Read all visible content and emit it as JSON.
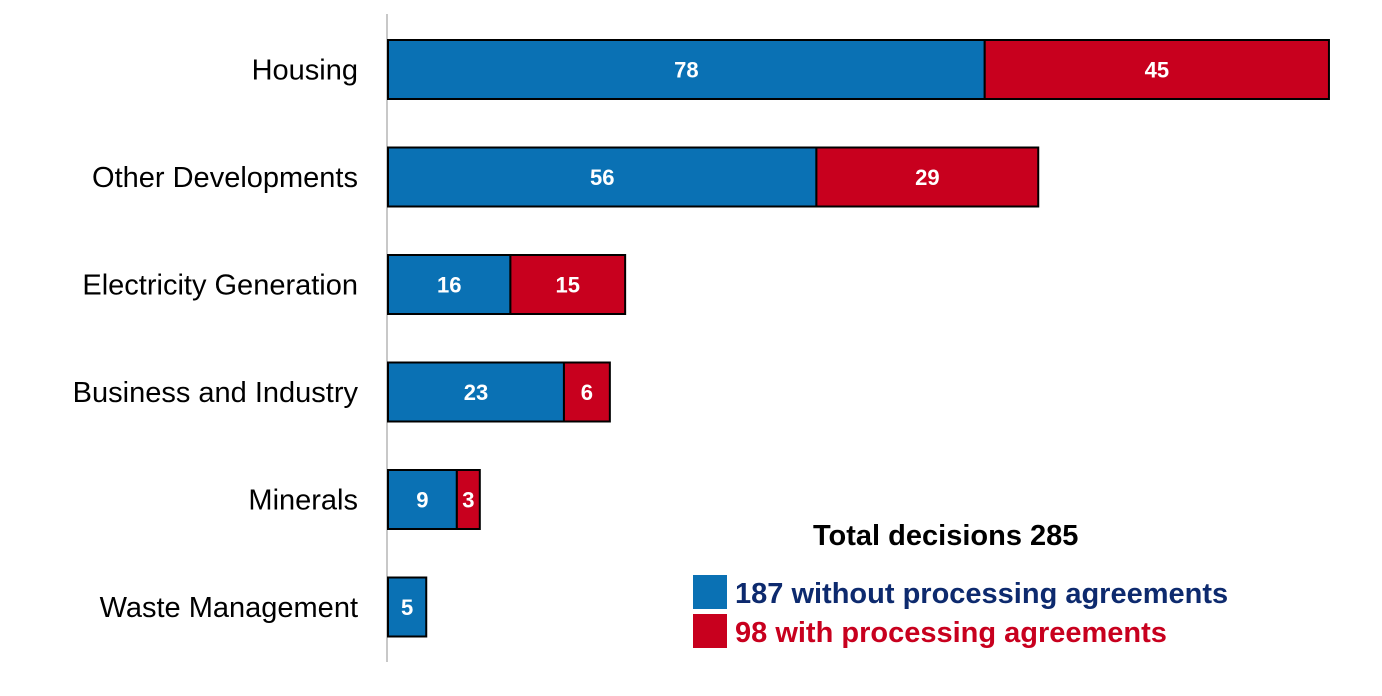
{
  "chart_data": {
    "type": "bar",
    "orientation": "horizontal",
    "stacked": true,
    "categories": [
      "Housing",
      "Other Developments",
      "Electricity Generation",
      "Business and Industry",
      "Minerals",
      "Waste Management"
    ],
    "series": [
      {
        "name": "187 without processing agreements",
        "color": "#0a71b4",
        "values": [
          78,
          56,
          16,
          23,
          9,
          5
        ]
      },
      {
        "name": "98 with processing agreements",
        "color": "#c8001e",
        "values": [
          45,
          29,
          15,
          6,
          3,
          0
        ]
      }
    ],
    "xlim": [
      0,
      124
    ],
    "grid": false,
    "legend_position": "bottom-right"
  },
  "legend": {
    "title": "Total decisions 285",
    "items": [
      {
        "label": "187 without processing agreements",
        "text_color": "#0d2a6e",
        "swatch_color": "#0a71b4"
      },
      {
        "label": "98 with processing agreements",
        "text_color": "#c8001e",
        "swatch_color": "#c8001e"
      }
    ]
  }
}
